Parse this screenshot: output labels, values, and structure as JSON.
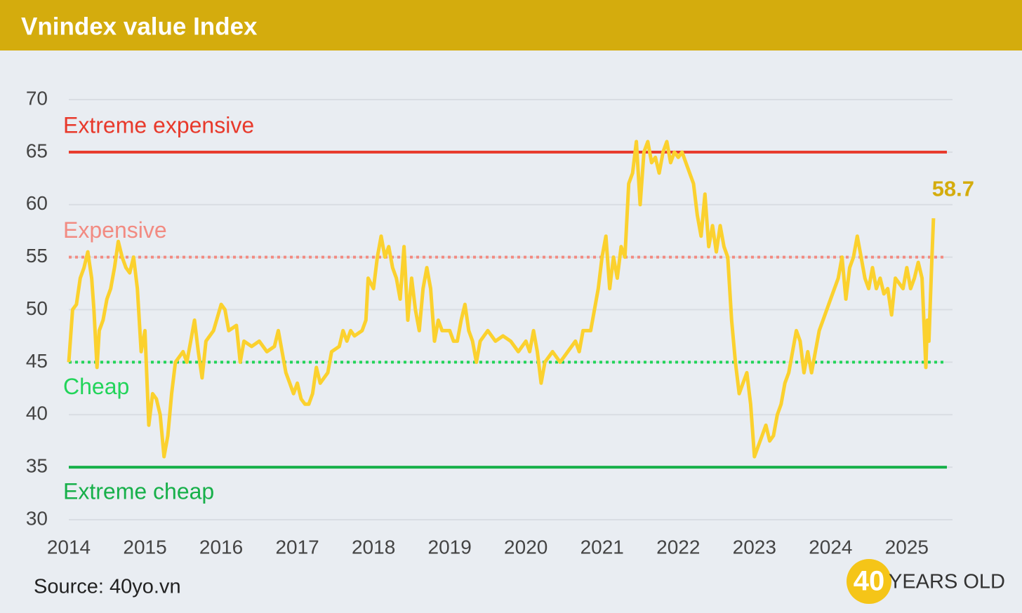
{
  "chart_data": {
    "type": "line",
    "title": "Vnindex value Index",
    "source": "Source: 40yo.vn",
    "logo": {
      "number": "40",
      "text": "YEARS OLD"
    },
    "xlim": [
      2014,
      2025.6
    ],
    "xticks": [
      2014,
      2015,
      2016,
      2017,
      2018,
      2019,
      2020,
      2021,
      2022,
      2023,
      2024,
      2025
    ],
    "ylim": [
      30,
      70
    ],
    "yticks": [
      30,
      35,
      40,
      45,
      50,
      55,
      60,
      65,
      70
    ],
    "grid": true,
    "reference_lines": [
      {
        "value": 65,
        "label": "Extreme expensive",
        "color": "#e8392b",
        "style": "solid"
      },
      {
        "value": 55,
        "label": "Expensive",
        "color": "#f28b82",
        "style": "dotted"
      },
      {
        "value": 45,
        "label": "Cheap",
        "color": "#22d45a",
        "style": "dotted"
      },
      {
        "value": 35,
        "label": "Extreme cheap",
        "color": "#17b04a",
        "style": "solid"
      }
    ],
    "series": [
      {
        "name": "Vnindex value Index",
        "color": "#fbd12e",
        "label_color": "#d4ac0d",
        "x": [
          2014.0,
          2014.05,
          2014.1,
          2014.15,
          2014.2,
          2014.25,
          2014.3,
          2014.33,
          2014.37,
          2014.4,
          2014.45,
          2014.5,
          2014.55,
          2014.6,
          2014.65,
          2014.7,
          2014.75,
          2014.8,
          2014.85,
          2014.9,
          2014.95,
          2015.0,
          2015.05,
          2015.1,
          2015.15,
          2015.2,
          2015.25,
          2015.3,
          2015.35,
          2015.4,
          2015.5,
          2015.55,
          2015.6,
          2015.65,
          2015.7,
          2015.75,
          2015.8,
          2015.9,
          2016.0,
          2016.05,
          2016.1,
          2016.2,
          2016.25,
          2016.3,
          2016.4,
          2016.5,
          2016.6,
          2016.7,
          2016.75,
          2016.8,
          2016.85,
          2016.9,
          2016.95,
          2017.0,
          2017.05,
          2017.1,
          2017.15,
          2017.2,
          2017.25,
          2017.3,
          2017.35,
          2017.4,
          2017.45,
          2017.55,
          2017.6,
          2017.65,
          2017.7,
          2017.75,
          2017.85,
          2017.9,
          2017.93,
          2018.0,
          2018.05,
          2018.1,
          2018.15,
          2018.2,
          2018.25,
          2018.3,
          2018.35,
          2018.4,
          2018.45,
          2018.5,
          2018.55,
          2018.6,
          2018.65,
          2018.7,
          2018.75,
          2018.8,
          2018.85,
          2018.9,
          2019.0,
          2019.05,
          2019.1,
          2019.15,
          2019.2,
          2019.25,
          2019.3,
          2019.35,
          2019.4,
          2019.5,
          2019.6,
          2019.7,
          2019.8,
          2019.9,
          2020.0,
          2020.05,
          2020.1,
          2020.15,
          2020.2,
          2020.25,
          2020.35,
          2020.45,
          2020.55,
          2020.65,
          2020.7,
          2020.75,
          2020.85,
          2020.9,
          2020.95,
          2021.0,
          2021.05,
          2021.1,
          2021.15,
          2021.2,
          2021.25,
          2021.3,
          2021.35,
          2021.4,
          2021.45,
          2021.5,
          2021.55,
          2021.6,
          2021.65,
          2021.7,
          2021.75,
          2021.8,
          2021.85,
          2021.9,
          2021.95,
          2022.0,
          2022.05,
          2022.1,
          2022.2,
          2022.25,
          2022.3,
          2022.35,
          2022.4,
          2022.45,
          2022.5,
          2022.55,
          2022.6,
          2022.65,
          2022.7,
          2022.75,
          2022.8,
          2022.85,
          2022.9,
          2022.95,
          2023.0,
          2023.05,
          2023.1,
          2023.15,
          2023.2,
          2023.25,
          2023.3,
          2023.35,
          2023.4,
          2023.45,
          2023.5,
          2023.55,
          2023.6,
          2023.65,
          2023.7,
          2023.75,
          2023.8,
          2023.85,
          2023.9,
          2024.0,
          2024.1,
          2024.15,
          2024.2,
          2024.25,
          2024.3,
          2024.35,
          2024.4,
          2024.45,
          2024.5,
          2024.55,
          2024.6,
          2024.65,
          2024.7,
          2024.75,
          2024.8,
          2024.85,
          2024.95,
          2025.0,
          2025.05,
          2025.1,
          2025.15,
          2025.2,
          2025.25,
          2025.27,
          2025.29,
          2025.31,
          2025.33,
          2025.35
        ],
        "values": [
          45,
          50,
          50.5,
          53,
          54,
          55.5,
          53,
          50,
          44.5,
          48,
          49,
          51,
          52,
          54,
          56.5,
          55,
          54,
          53.5,
          55,
          52,
          46,
          48,
          39,
          42,
          41.5,
          40,
          36,
          38,
          42,
          45,
          46,
          45,
          47,
          49,
          46,
          43.5,
          47,
          48,
          50.5,
          50,
          48,
          48.5,
          45,
          47,
          46.5,
          47,
          46,
          46.5,
          48,
          46,
          44,
          43,
          42,
          43,
          41.5,
          41,
          41,
          42,
          44.5,
          43,
          43.5,
          44,
          46,
          46.5,
          48,
          47,
          48,
          47.5,
          48,
          49,
          53,
          52,
          55,
          57,
          55,
          56,
          54,
          53,
          51,
          56,
          49,
          53,
          50,
          48,
          52,
          54,
          52,
          47,
          49,
          48,
          48,
          47,
          47,
          49,
          50.5,
          48,
          47,
          45,
          47,
          48,
          47,
          47.5,
          47,
          46,
          47,
          46,
          48,
          46,
          43,
          45,
          46,
          45,
          46,
          47,
          46,
          48,
          48,
          50,
          52,
          55,
          57,
          52,
          55,
          53,
          56,
          55,
          62,
          63,
          66,
          60,
          65,
          66,
          64,
          64.5,
          63,
          65,
          66,
          64,
          65,
          64.5,
          65,
          64,
          62,
          59,
          57,
          61,
          56,
          58,
          55.5,
          58,
          56,
          55,
          49,
          45,
          42,
          43,
          44,
          41,
          36,
          37,
          38,
          39,
          37.5,
          38,
          40,
          41,
          43,
          44,
          46,
          48,
          47,
          44,
          46,
          44,
          46,
          48,
          49,
          51,
          53,
          55,
          51,
          54,
          55,
          57,
          55,
          53,
          52,
          54,
          52,
          53,
          51.5,
          52,
          49.5,
          53,
          52,
          54,
          52,
          53,
          54.5,
          53,
          44.5,
          49,
          47,
          51,
          55,
          58.7
        ]
      }
    ]
  }
}
